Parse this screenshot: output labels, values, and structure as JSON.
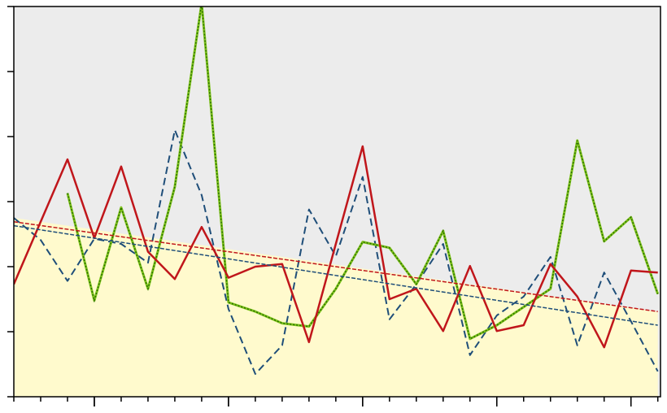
{
  "chart_data": {
    "type": "line",
    "x": [
      0,
      1,
      2,
      3,
      4,
      5,
      6,
      7,
      8,
      9,
      10,
      11,
      12,
      13,
      14,
      15,
      16,
      17,
      18,
      19,
      20,
      21,
      22,
      23,
      24
    ],
    "xlim": [
      0,
      24.1
    ],
    "xticks": [
      0,
      1,
      2,
      3,
      4,
      5,
      6,
      7,
      8,
      9,
      10,
      11,
      12,
      13,
      14,
      15,
      16,
      17,
      18,
      19,
      20,
      21,
      22,
      23,
      24
    ],
    "x_major_ticks": [
      3,
      8,
      13,
      18,
      23
    ],
    "ylim": [
      0,
      6
    ],
    "yticks": [
      0,
      1,
      2,
      3,
      4,
      5,
      6
    ],
    "background": "#ececec",
    "area": {
      "color": "#fffacd",
      "values": [
        2.75,
        2.69,
        2.63,
        2.57,
        2.51,
        2.45,
        2.39,
        2.33,
        2.27,
        2.21,
        2.15,
        2.09,
        2.03,
        1.97,
        1.91,
        1.85,
        1.79,
        1.73,
        1.67,
        1.61,
        1.55,
        1.49,
        1.43,
        1.37,
        1.31
      ]
    },
    "series": [
      {
        "color": "#1f4e79",
        "style": "dashed",
        "width": 2,
        "values": [
          2.75,
          2.41,
          1.78,
          2.43,
          2.35,
          2.06,
          4.1,
          3.1,
          1.35,
          0.35,
          0.79,
          2.88,
          2.16,
          3.38,
          1.19,
          1.73,
          2.35,
          0.64,
          1.25,
          1.54,
          2.15,
          0.79,
          1.91,
          1.16,
          0.39
        ]
      },
      {
        "color": "#7fc31c",
        "style": "dotted-over",
        "overlay_color": "#2a6e00",
        "width": 3,
        "values": [
          null,
          null,
          3.13,
          1.48,
          2.91,
          1.66,
          3.23,
          6.05,
          1.45,
          1.31,
          1.13,
          1.08,
          1.66,
          2.38,
          2.29,
          1.73,
          2.55,
          0.89,
          1.1,
          1.38,
          1.66,
          3.94,
          2.39,
          2.76,
          1.58
        ]
      },
      {
        "color": "#c0161b",
        "style": "solid",
        "width": 2.5,
        "values": [
          1.73,
          2.69,
          3.65,
          2.44,
          3.54,
          2.23,
          1.81,
          2.61,
          1.83,
          2.0,
          2.04,
          0.84,
          2.35,
          3.85,
          1.5,
          1.66,
          1.01,
          2.01,
          1.01,
          1.1,
          2.04,
          1.54,
          0.76,
          1.94,
          1.91
        ]
      },
      {
        "color": "#c0161b",
        "style": "fine-dashed",
        "width": 1.5,
        "x": [
          0,
          24
        ],
        "values": [
          2.69,
          1.31
        ]
      },
      {
        "color": "#1f4e79",
        "style": "fine-dashed",
        "width": 1.5,
        "x": [
          0,
          24
        ],
        "values": [
          2.63,
          1.1
        ]
      }
    ]
  }
}
